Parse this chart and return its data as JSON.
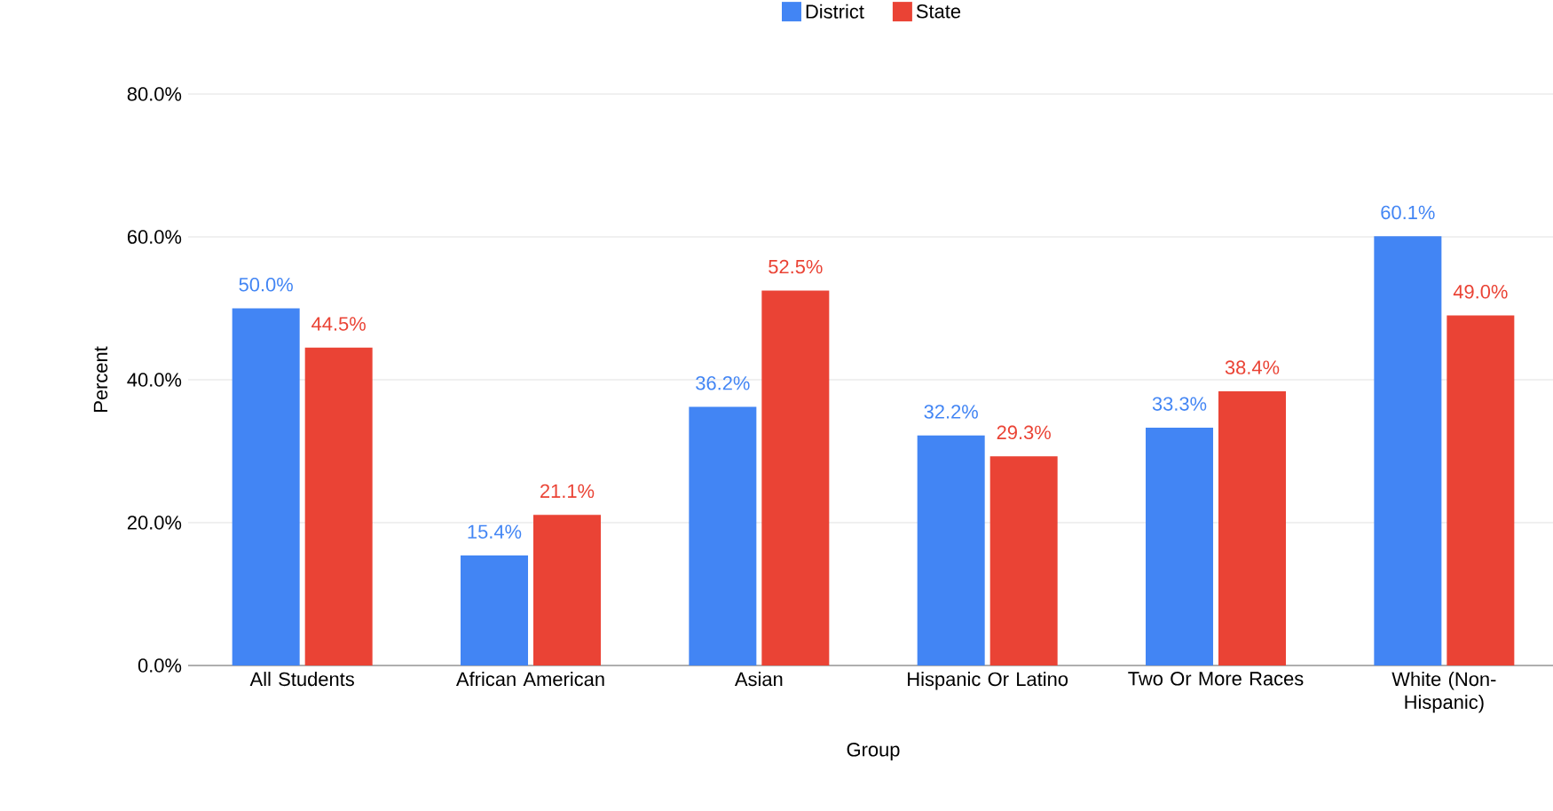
{
  "chart_data": {
    "type": "bar",
    "xlabel": "Group",
    "ylabel": "Percent",
    "categories": [
      "All Students",
      "African American",
      "Asian",
      "Hispanic Or Latino",
      "Two Or More Races",
      "White (Non-Hispanic)"
    ],
    "series": [
      {
        "name": "District",
        "color": "#4285f4",
        "values": [
          50.0,
          15.4,
          36.2,
          32.2,
          33.3,
          60.1
        ],
        "value_labels": [
          "50.0%",
          "15.4%",
          "36.2%",
          "32.2%",
          "33.3%",
          "60.1%"
        ]
      },
      {
        "name": "State",
        "color": "#ea4335",
        "values": [
          44.5,
          21.1,
          52.5,
          29.3,
          38.4,
          49.0
        ],
        "value_labels": [
          "44.5%",
          "21.1%",
          "52.5%",
          "29.3%",
          "38.4%",
          "49.0%"
        ]
      }
    ],
    "ylim": [
      0,
      80
    ],
    "yticks": [
      {
        "value": 0,
        "label": "0.0%"
      },
      {
        "value": 20,
        "label": "20.0%"
      },
      {
        "value": 40,
        "label": "40.0%"
      },
      {
        "value": 60,
        "label": "60.0%"
      },
      {
        "value": 80,
        "label": "80.0%"
      }
    ],
    "grid": "y",
    "legend": "top"
  }
}
